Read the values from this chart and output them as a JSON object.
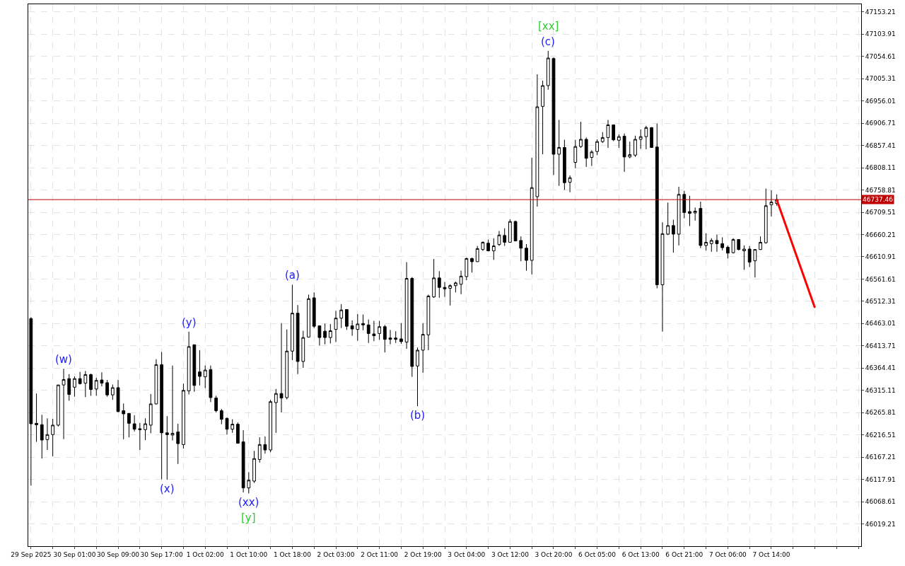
{
  "chart_data": {
    "type": "candlestick",
    "categories": [
      "29 Sep 2025",
      null,
      null,
      null,
      null,
      null,
      null,
      null,
      "30 Sep 01:00",
      null,
      null,
      null,
      null,
      null,
      null,
      null,
      "30 Sep 09:00",
      null,
      null,
      null,
      null,
      null,
      null,
      null,
      "30 Sep 17:00",
      null,
      null,
      null,
      null,
      null,
      null,
      null,
      "1 Oct 02:00",
      null,
      null,
      null,
      null,
      null,
      null,
      null,
      "1 Oct 10:00",
      null,
      null,
      null,
      null,
      null,
      null,
      null,
      "1 Oct 18:00",
      null,
      null,
      null,
      null,
      null,
      null,
      null,
      "2 Oct 03:00",
      null,
      null,
      null,
      null,
      null,
      null,
      null,
      "2 Oct 11:00",
      null,
      null,
      null,
      null,
      null,
      null,
      null,
      "2 Oct 19:00",
      null,
      null,
      null,
      null,
      null,
      null,
      null,
      "3 Oct 04:00",
      null,
      null,
      null,
      null,
      null,
      null,
      null,
      "3 Oct 12:00",
      null,
      null,
      null,
      null,
      null,
      null,
      null,
      "3 Oct 20:00",
      null,
      null,
      null,
      null,
      null,
      null,
      null,
      "6 Oct 05:00",
      null,
      null,
      null,
      null,
      null,
      null,
      null,
      "6 Oct 13:00",
      null,
      null,
      null,
      null,
      null,
      null,
      null,
      "6 Oct 21:00",
      null,
      null,
      null,
      null,
      null,
      null,
      null,
      "7 Oct 06:00",
      null,
      null,
      null,
      null,
      null,
      null,
      null,
      "7 Oct 14:00",
      null,
      null,
      null,
      null,
      null,
      null,
      null,
      null,
      null,
      null,
      null,
      null,
      null,
      null,
      null,
      null
    ],
    "ohlc": [
      [
        46474,
        46477,
        46104,
        46241
      ],
      [
        46242,
        46308,
        46201,
        46239
      ],
      [
        46239,
        46261,
        46164,
        46205
      ],
      [
        46206,
        46253,
        46183,
        46217
      ],
      [
        46217,
        46252,
        46169,
        46238
      ],
      [
        46238,
        46327,
        46235,
        46327
      ],
      [
        46327,
        46363,
        46207,
        46339
      ],
      [
        46341,
        46351,
        46292,
        46306
      ],
      [
        46322,
        46346,
        46301,
        46341
      ],
      [
        46341,
        46356,
        46328,
        46330
      ],
      [
        46331,
        46358,
        46300,
        46350
      ],
      [
        46350,
        46352,
        46303,
        46317
      ],
      [
        46318,
        46343,
        46303,
        46337
      ],
      [
        46338,
        46355,
        46324,
        46331
      ],
      [
        46332,
        46338,
        46301,
        46305
      ],
      [
        46305,
        46328,
        46294,
        46321
      ],
      [
        46321,
        46338,
        46267,
        46268
      ],
      [
        46270,
        46286,
        46207,
        46263
      ],
      [
        46264,
        46264,
        46211,
        46242
      ],
      [
        46241,
        46260,
        46224,
        46229
      ],
      [
        46230,
        46243,
        46183,
        46228
      ],
      [
        46228,
        46253,
        46205,
        46241
      ],
      [
        46238,
        46307,
        46220,
        46285
      ],
      [
        46285,
        46384,
        46284,
        46372
      ],
      [
        46372,
        46400,
        46118,
        46221
      ],
      [
        46221,
        46258,
        46117,
        46217
      ],
      [
        46216,
        46370,
        46204,
        46220
      ],
      [
        46223,
        46241,
        46152,
        46197
      ],
      [
        46195,
        46330,
        46186,
        46315
      ],
      [
        46314,
        46445,
        46306,
        46412
      ],
      [
        46416,
        46416,
        46312,
        46326
      ],
      [
        46356,
        46404,
        46326,
        46346
      ],
      [
        46345,
        46370,
        46320,
        46360
      ],
      [
        46361,
        46370,
        46289,
        46299
      ],
      [
        46298,
        46303,
        46266,
        46270
      ],
      [
        46270,
        46274,
        46240,
        46251
      ],
      [
        46253,
        46255,
        46217,
        46229
      ],
      [
        46229,
        46251,
        46221,
        46240
      ],
      [
        46240,
        46244,
        46198,
        46198
      ],
      [
        46201,
        46227,
        46089,
        46099
      ],
      [
        46099,
        46134,
        46087,
        46116
      ],
      [
        46114,
        46181,
        46110,
        46164
      ],
      [
        46162,
        46211,
        46155,
        46195
      ],
      [
        46195,
        46213,
        46175,
        46183
      ],
      [
        46183,
        46294,
        46178,
        46290
      ],
      [
        46288,
        46318,
        46221,
        46308
      ],
      [
        46308,
        46464,
        46266,
        46298
      ],
      [
        46299,
        46450,
        46295,
        46402
      ],
      [
        46402,
        46549,
        46382,
        46486
      ],
      [
        46486,
        46504,
        46351,
        46379
      ],
      [
        46379,
        46447,
        46365,
        46432
      ],
      [
        46433,
        46527,
        46432,
        46518
      ],
      [
        46520,
        46532,
        46453,
        46457
      ],
      [
        46458,
        46458,
        46414,
        46432
      ],
      [
        46446,
        46463,
        46417,
        46432
      ],
      [
        46432,
        46462,
        46419,
        46447
      ],
      [
        46450,
        46491,
        46422,
        46475
      ],
      [
        46475,
        46506,
        46453,
        46493
      ],
      [
        46494,
        46495,
        46449,
        46457
      ],
      [
        46458,
        46470,
        46436,
        46451
      ],
      [
        46450,
        46484,
        46425,
        46462
      ],
      [
        46463,
        46483,
        46448,
        46460
      ],
      [
        46460,
        46472,
        46420,
        46441
      ],
      [
        46440,
        46469,
        46424,
        46436
      ],
      [
        46441,
        46469,
        46427,
        46456
      ],
      [
        46456,
        46460,
        46399,
        46428
      ],
      [
        46431,
        46449,
        46417,
        46428
      ],
      [
        46431,
        46446,
        46420,
        46428
      ],
      [
        46429,
        46464,
        46418,
        46423
      ],
      [
        46422,
        46599,
        46407,
        46563
      ],
      [
        46563,
        46566,
        46345,
        46368
      ],
      [
        46369,
        46410,
        46280,
        46404
      ],
      [
        46404,
        46464,
        46354,
        46439
      ],
      [
        46438,
        46527,
        46404,
        46524
      ],
      [
        46522,
        46606,
        46520,
        46564
      ],
      [
        46564,
        46579,
        46520,
        46543
      ],
      [
        46543,
        46555,
        46522,
        46540
      ],
      [
        46541,
        46550,
        46503,
        46547
      ],
      [
        46547,
        46556,
        46532,
        46553
      ],
      [
        46550,
        46580,
        46528,
        46568
      ],
      [
        46567,
        46609,
        46559,
        46607
      ],
      [
        46607,
        46609,
        46576,
        46600
      ],
      [
        46600,
        46635,
        46600,
        46629
      ],
      [
        46627,
        46645,
        46624,
        46643
      ],
      [
        46641,
        46649,
        46624,
        46624
      ],
      [
        46624,
        46652,
        46604,
        46635
      ],
      [
        46638,
        46668,
        46635,
        46659
      ],
      [
        46658,
        46674,
        46635,
        46643
      ],
      [
        46643,
        46694,
        46642,
        46689
      ],
      [
        46689,
        46691,
        46645,
        46646
      ],
      [
        46647,
        46656,
        46601,
        46630
      ],
      [
        46630,
        46639,
        46580,
        46603
      ],
      [
        46603,
        46830,
        46572,
        46764
      ],
      [
        46744,
        47015,
        46722,
        46943
      ],
      [
        46944,
        47001,
        46838,
        46990
      ],
      [
        46990,
        47067,
        46981,
        47051
      ],
      [
        47050,
        47052,
        46792,
        46838
      ],
      [
        46838,
        46914,
        46768,
        46853
      ],
      [
        46853,
        46870,
        46759,
        46775
      ],
      [
        46776,
        46791,
        46754,
        46786
      ],
      [
        46820,
        46870,
        46807,
        46855
      ],
      [
        46855,
        46910,
        46852,
        46871
      ],
      [
        46871,
        46875,
        46810,
        46829
      ],
      [
        46831,
        46847,
        46812,
        46843
      ],
      [
        46844,
        46871,
        46836,
        46866
      ],
      [
        46866,
        46887,
        46863,
        46875
      ],
      [
        46875,
        46914,
        46852,
        46903
      ],
      [
        46903,
        46904,
        46867,
        46870
      ],
      [
        46869,
        46882,
        46852,
        46877
      ],
      [
        46878,
        46884,
        46799,
        46832
      ],
      [
        46832,
        46866,
        46829,
        46837
      ],
      [
        46836,
        46879,
        46832,
        46871
      ],
      [
        46871,
        46893,
        46850,
        46877
      ],
      [
        46877,
        46901,
        46849,
        46897
      ],
      [
        46897,
        46898,
        46852,
        46853
      ],
      [
        46854,
        46906,
        46541,
        46549
      ],
      [
        46549,
        46687,
        46445,
        46662
      ],
      [
        46661,
        46731,
        46659,
        46680
      ],
      [
        46680,
        46693,
        46620,
        46661
      ],
      [
        46661,
        46766,
        46636,
        46749
      ],
      [
        46749,
        46757,
        46696,
        46709
      ],
      [
        46711,
        46746,
        46679,
        46707
      ],
      [
        46708,
        46720,
        46691,
        46712
      ],
      [
        46718,
        46733,
        46630,
        46636
      ],
      [
        46636,
        46663,
        46625,
        46643
      ],
      [
        46640,
        46652,
        46622,
        46647
      ],
      [
        46647,
        46660,
        46622,
        46640
      ],
      [
        46640,
        46654,
        46625,
        46631
      ],
      [
        46632,
        46636,
        46607,
        46619
      ],
      [
        46620,
        46652,
        46618,
        46649
      ],
      [
        46649,
        46650,
        46625,
        46627
      ],
      [
        46624,
        46636,
        46582,
        46628
      ],
      [
        46628,
        46635,
        46588,
        46599
      ],
      [
        46602,
        46627,
        46565,
        46627
      ],
      [
        46627,
        46656,
        46626,
        46643
      ],
      [
        46642,
        46762,
        46640,
        46724
      ],
      [
        46726,
        46758,
        46700,
        46732
      ],
      [
        46729,
        46749,
        46724,
        46737.46
      ],
      null,
      null,
      null,
      null,
      null,
      null,
      null,
      null,
      null,
      null,
      null,
      null,
      null,
      null,
      null
    ],
    "series": [
      {
        "type": "line",
        "color": "#ff0000",
        "values": [
          null,
          null,
          null,
          null,
          null,
          null,
          null,
          null,
          null,
          null,
          null,
          null,
          null,
          null,
          null,
          null,
          null,
          null,
          null,
          null,
          null,
          null,
          null,
          null,
          null,
          null,
          null,
          null,
          null,
          null,
          null,
          null,
          null,
          null,
          null,
          null,
          null,
          null,
          null,
          null,
          null,
          null,
          null,
          null,
          null,
          null,
          null,
          null,
          null,
          null,
          null,
          null,
          null,
          null,
          null,
          null,
          null,
          null,
          null,
          null,
          null,
          null,
          null,
          null,
          null,
          null,
          null,
          null,
          null,
          null,
          null,
          null,
          null,
          null,
          null,
          null,
          null,
          null,
          null,
          null,
          null,
          null,
          null,
          null,
          null,
          null,
          null,
          null,
          null,
          null,
          null,
          null,
          null,
          null,
          null,
          null,
          null,
          null,
          null,
          null,
          null,
          null,
          null,
          null,
          null,
          null,
          null,
          null,
          null,
          null,
          null,
          null,
          null,
          null,
          null,
          null,
          null,
          null,
          null,
          null,
          null,
          null,
          null,
          null,
          null,
          null,
          null,
          null,
          null,
          null,
          null,
          null,
          null,
          null,
          null,
          null,
          null,
          46737,
          null,
          null,
          null,
          null,
          null,
          null,
          46498,
          null,
          null,
          null,
          null,
          null,
          null,
          null,
          null
        ]
      }
    ],
    "ylim": [
      45969.9,
      47170.2
    ],
    "yticks": [
      46019.21,
      46068.61,
      46117.91,
      46167.21,
      46216.51,
      46265.81,
      46315.11,
      46364.41,
      46413.71,
      46463.01,
      46512.31,
      46561.61,
      46610.91,
      46660.21,
      46709.51,
      46758.81,
      46808.11,
      46857.41,
      46906.71,
      46956.01,
      47005.31,
      47054.61,
      47103.91,
      47153.21
    ],
    "grid": true,
    "ref_lines": [
      {
        "axis": "y",
        "value": 46737.46,
        "label": "46737.46",
        "color": "#c00000"
      }
    ],
    "annotations": [
      {
        "text": "(w)",
        "y": 46363
      },
      {
        "text": "(x)",
        "y": 46117
      },
      {
        "text": "(y)",
        "y": 46445
      },
      {
        "text": "(xx)",
        "y": 46087
      },
      {
        "text": "[y]",
        "y": 46087
      },
      {
        "text": "(a)",
        "y": 46549
      },
      {
        "text": "(b)",
        "y": 46280
      },
      {
        "text": "(c)",
        "y": 47067
      },
      {
        "text": "[xx]",
        "y": 47067
      }
    ]
  }
}
